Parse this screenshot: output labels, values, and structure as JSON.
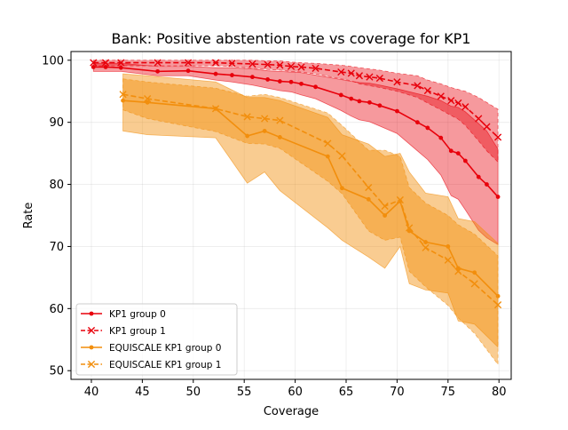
{
  "chart_data": {
    "type": "line",
    "title": "Bank: Positive abstention rate vs coverage for KP1",
    "xlabel": "Coverage",
    "ylabel": "Rate",
    "xlim": [
      38.0,
      81.2
    ],
    "ylim": [
      48.6,
      101.4
    ],
    "xticks": [
      40,
      45,
      50,
      55,
      60,
      65,
      70,
      75,
      80
    ],
    "yticks": [
      50,
      60,
      70,
      80,
      90,
      100
    ],
    "grid": true,
    "legend_position": "lower-left",
    "series": [
      {
        "name": "KP1 group 0",
        "color": "#e8000b",
        "linestyle": "solid",
        "marker": "dot",
        "band_opacity": 0.4,
        "points": [
          [
            40.2,
            98.9,
            99.5,
            98.2
          ],
          [
            41.4,
            98.9,
            99.5,
            98.2
          ],
          [
            42.9,
            98.8,
            99.5,
            98.2
          ],
          [
            46.5,
            98.2,
            99.0,
            97.5
          ],
          [
            49.5,
            98.3,
            99.0,
            97.5
          ],
          [
            52.2,
            97.8,
            98.8,
            96.8
          ],
          [
            53.8,
            97.6,
            98.8,
            96.5
          ],
          [
            55.8,
            97.3,
            98.6,
            96.0
          ],
          [
            57.3,
            96.9,
            98.3,
            95.5
          ],
          [
            58.5,
            96.6,
            98.2,
            95.1
          ],
          [
            59.6,
            96.5,
            98.1,
            94.9
          ],
          [
            60.6,
            96.2,
            98.0,
            94.4
          ],
          [
            62.0,
            95.7,
            97.6,
            93.8
          ],
          [
            64.5,
            94.4,
            96.9,
            91.9
          ],
          [
            65.5,
            93.8,
            96.6,
            91.0
          ],
          [
            66.3,
            93.4,
            96.4,
            90.4
          ],
          [
            67.3,
            93.2,
            96.3,
            90.1
          ],
          [
            68.3,
            92.7,
            96.0,
            89.4
          ],
          [
            70.0,
            91.8,
            95.4,
            88.2
          ],
          [
            72.0,
            90.0,
            94.6,
            85.4
          ],
          [
            73.0,
            89.1,
            94.2,
            84.0
          ],
          [
            74.3,
            87.5,
            93.5,
            81.5
          ],
          [
            75.3,
            85.4,
            92.6,
            78.2
          ],
          [
            76.0,
            85.0,
            92.4,
            77.6
          ],
          [
            76.7,
            83.8,
            91.7,
            75.9
          ],
          [
            78.0,
            81.2,
            89.8,
            72.6
          ],
          [
            78.8,
            80.0,
            88.6,
            71.4
          ],
          [
            79.9,
            78.0,
            85.7,
            70.3
          ]
        ]
      },
      {
        "name": "KP1 group 1",
        "color": "#e8000b",
        "linestyle": "dashed",
        "marker": "x",
        "band_opacity": 0.4,
        "points": [
          [
            40.2,
            99.6,
            100.0,
            99.1
          ],
          [
            41.4,
            99.6,
            100.0,
            99.1
          ],
          [
            42.9,
            99.6,
            100.0,
            99.1
          ],
          [
            46.5,
            99.6,
            100.0,
            99.1
          ],
          [
            49.5,
            99.6,
            100.0,
            99.1
          ],
          [
            52.2,
            99.6,
            100.0,
            99.1
          ],
          [
            53.8,
            99.5,
            100.0,
            99.0
          ],
          [
            55.8,
            99.4,
            100.0,
            98.7
          ],
          [
            57.3,
            99.3,
            99.9,
            98.5
          ],
          [
            58.5,
            99.2,
            99.9,
            98.4
          ],
          [
            59.6,
            99.0,
            99.7,
            98.2
          ],
          [
            60.6,
            98.9,
            99.6,
            98.1
          ],
          [
            62.0,
            98.7,
            99.5,
            97.8
          ],
          [
            64.5,
            98.1,
            99.2,
            97.0
          ],
          [
            65.5,
            97.9,
            99.0,
            96.7
          ],
          [
            66.3,
            97.5,
            98.8,
            96.2
          ],
          [
            67.3,
            97.3,
            98.6,
            95.9
          ],
          [
            68.3,
            97.1,
            98.4,
            95.6
          ],
          [
            70.0,
            96.5,
            97.9,
            95.0
          ],
          [
            72.0,
            95.9,
            97.5,
            94.0
          ],
          [
            73.0,
            95.1,
            96.8,
            93.1
          ],
          [
            74.3,
            94.2,
            96.2,
            92.0
          ],
          [
            75.3,
            93.5,
            95.6,
            91.1
          ],
          [
            76.0,
            93.1,
            95.3,
            90.5
          ],
          [
            76.7,
            92.5,
            95.0,
            89.5
          ],
          [
            78.0,
            90.6,
            94.0,
            87.0
          ],
          [
            78.8,
            89.3,
            93.2,
            85.4
          ],
          [
            79.9,
            87.6,
            92.1,
            83.6
          ]
        ]
      },
      {
        "name": "EQUISCALE KP1 group 0",
        "color": "#f28e0c",
        "linestyle": "solid",
        "marker": "dot",
        "band_opacity": 0.45,
        "points": [
          [
            43.1,
            93.5,
            97.8,
            88.6
          ],
          [
            45.5,
            93.2,
            97.5,
            88.0
          ],
          [
            52.2,
            92.2,
            96.5,
            87.5
          ],
          [
            55.3,
            87.8,
            94.0,
            80.2
          ],
          [
            57.0,
            88.6,
            94.0,
            82.0
          ],
          [
            58.5,
            87.6,
            93.5,
            79.0
          ],
          [
            63.2,
            84.5,
            90.8,
            73.0
          ],
          [
            64.6,
            79.4,
            88.0,
            71.0
          ],
          [
            67.2,
            77.6,
            86.5,
            68.3
          ],
          [
            68.8,
            75.0,
            84.5,
            66.5
          ],
          [
            70.3,
            77.3,
            85.0,
            70.0
          ],
          [
            71.2,
            72.5,
            82.0,
            64.0
          ],
          [
            72.8,
            70.7,
            78.6,
            63.0
          ],
          [
            75.0,
            70.0,
            78.0,
            62.5
          ],
          [
            76.0,
            66.5,
            74.5,
            58.0
          ],
          [
            77.6,
            65.8,
            74.0,
            57.5
          ],
          [
            79.9,
            62.0,
            70.5,
            53.8
          ]
        ]
      },
      {
        "name": "EQUISCALE KP1 group 1",
        "color": "#f28e0c",
        "linestyle": "dashed",
        "marker": "x",
        "band_opacity": 0.45,
        "points": [
          [
            43.1,
            94.5,
            97.0,
            92.0
          ],
          [
            45.5,
            93.8,
            96.5,
            90.6
          ],
          [
            52.2,
            92.2,
            95.5,
            88.5
          ],
          [
            55.3,
            90.9,
            94.2,
            86.6
          ],
          [
            57.0,
            90.6,
            94.5,
            86.5
          ],
          [
            58.5,
            90.3,
            94.0,
            85.8
          ],
          [
            63.2,
            86.6,
            91.5,
            80.5
          ],
          [
            64.6,
            84.6,
            89.5,
            78.5
          ],
          [
            67.2,
            79.5,
            85.5,
            72.5
          ],
          [
            68.8,
            76.5,
            85.5,
            71.0
          ],
          [
            70.3,
            77.5,
            84.5,
            71.5
          ],
          [
            71.2,
            73.0,
            79.5,
            66.0
          ],
          [
            72.8,
            69.8,
            77.0,
            63.5
          ],
          [
            75.0,
            67.8,
            75.0,
            60.5
          ],
          [
            76.0,
            66.0,
            73.5,
            58.5
          ],
          [
            77.6,
            64.0,
            72.0,
            56.0
          ],
          [
            79.9,
            60.6,
            68.5,
            51.0
          ]
        ]
      }
    ]
  }
}
